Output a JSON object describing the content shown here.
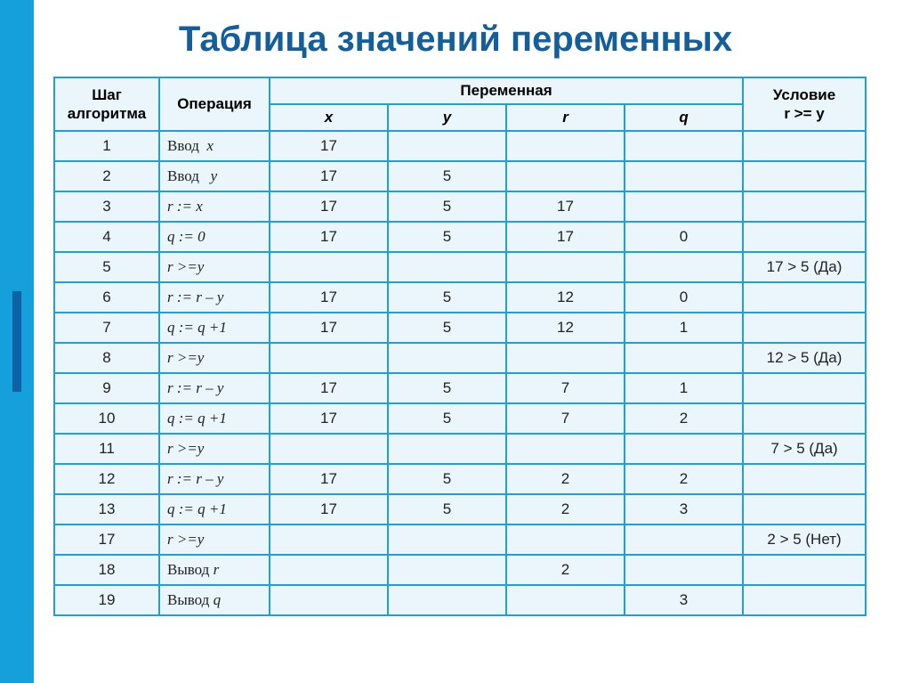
{
  "title": "Таблица значений переменных",
  "headers": {
    "step": "Шаг\nалгоритма",
    "op": "Операция",
    "var": "Переменная",
    "cond": "Условие\nr >= y",
    "x": "x",
    "y": "y",
    "r": "r",
    "q": "q"
  },
  "rows": [
    {
      "step": "1",
      "op_html": "<span class='upright'>Ввод&nbsp;&nbsp;</span>x",
      "x": "17",
      "y": "",
      "r": "",
      "q": "",
      "cond": ""
    },
    {
      "step": "2",
      "op_html": "<span class='upright'>Ввод&nbsp;&nbsp;&nbsp;</span>y",
      "x": "17",
      "y": "5",
      "r": "",
      "q": "",
      "cond": ""
    },
    {
      "step": "3",
      "op_html": "r := x",
      "x": "17",
      "y": "5",
      "r": "17",
      "q": "",
      "cond": ""
    },
    {
      "step": "4",
      "op_html": "q := 0",
      "x": "17",
      "y": "5",
      "r": "17",
      "q": "0",
      "cond": ""
    },
    {
      "step": "5",
      "op_html": "r &gt;=y",
      "x": "",
      "y": "",
      "r": "",
      "q": "",
      "cond": "17 > 5 (Да)"
    },
    {
      "step": "6",
      "op_html": "r := r – y",
      "x": "17",
      "y": "5",
      "r": "12",
      "q": "0",
      "cond": ""
    },
    {
      "step": "7",
      "op_html": "q := q +1",
      "x": "17",
      "y": "5",
      "r": "12",
      "q": "1",
      "cond": ""
    },
    {
      "step": "8",
      "op_html": "r &gt;=y",
      "x": "",
      "y": "",
      "r": "",
      "q": "",
      "cond": "12 > 5 (Да)"
    },
    {
      "step": "9",
      "op_html": "r := r – y",
      "x": "17",
      "y": "5",
      "r": "7",
      "q": "1",
      "cond": ""
    },
    {
      "step": "10",
      "op_html": "q := q +1",
      "x": "17",
      "y": "5",
      "r": "7",
      "q": "2",
      "cond": ""
    },
    {
      "step": "11",
      "op_html": "r &gt;=y",
      "x": "",
      "y": "",
      "r": "",
      "q": "",
      "cond": "7 > 5 (Да)"
    },
    {
      "step": "12",
      "op_html": "r := r – y",
      "x": "17",
      "y": "5",
      "r": "2",
      "q": "2",
      "cond": ""
    },
    {
      "step": "13",
      "op_html": "q := q +1",
      "x": "17",
      "y": "5",
      "r": "2",
      "q": "3",
      "cond": ""
    },
    {
      "step": "17",
      "op_html": "r &gt;=y",
      "x": "",
      "y": "",
      "r": "",
      "q": "",
      "cond": "2 > 5 (Нет)"
    },
    {
      "step": "18",
      "op_html": "<span class='upright'>Вывод&nbsp;</span>r",
      "x": "",
      "y": "",
      "r": "2",
      "q": "",
      "cond": ""
    },
    {
      "step": "19",
      "op_html": "<span class='upright'>Вывод&nbsp;</span>q",
      "x": "",
      "y": "",
      "r": "",
      "q": "3",
      "cond": ""
    }
  ],
  "style": {
    "border_color": "#1e9fd8",
    "cell_bg": "#eaf6fb",
    "title_color": "#135f9b",
    "sidebar_color": "#16a0db",
    "accent_color": "#0d62a6",
    "font_size_title": 40,
    "font_size_cell": 17
  }
}
